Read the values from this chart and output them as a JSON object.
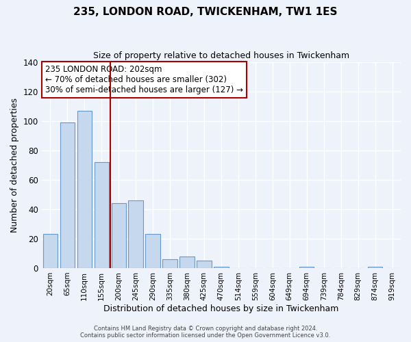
{
  "title": "235, LONDON ROAD, TWICKENHAM, TW1 1ES",
  "subtitle": "Size of property relative to detached houses in Twickenham",
  "xlabel": "Distribution of detached houses by size in Twickenham",
  "ylabel": "Number of detached properties",
  "bar_labels": [
    "20sqm",
    "65sqm",
    "110sqm",
    "155sqm",
    "200sqm",
    "245sqm",
    "290sqm",
    "335sqm",
    "380sqm",
    "425sqm",
    "470sqm",
    "514sqm",
    "559sqm",
    "604sqm",
    "649sqm",
    "694sqm",
    "739sqm",
    "784sqm",
    "829sqm",
    "874sqm",
    "919sqm"
  ],
  "bar_values": [
    23,
    99,
    107,
    72,
    44,
    46,
    23,
    6,
    8,
    5,
    1,
    0,
    0,
    0,
    0,
    1,
    0,
    0,
    0,
    1,
    0
  ],
  "bar_color": "#c5d8ee",
  "bar_edgecolor": "#6699cc",
  "ylim": [
    0,
    140
  ],
  "yticks": [
    0,
    20,
    40,
    60,
    80,
    100,
    120,
    140
  ],
  "property_line_x": 3.5,
  "property_line_color": "#aa0000",
  "annotation_title": "235 LONDON ROAD: 202sqm",
  "annotation_line1": "← 70% of detached houses are smaller (302)",
  "annotation_line2": "30% of semi-detached houses are larger (127) →",
  "annotation_box_edgecolor": "#aa0000",
  "footer_line1": "Contains HM Land Registry data © Crown copyright and database right 2024.",
  "footer_line2": "Contains public sector information licensed under the Open Government Licence v3.0.",
  "background_color": "#eef2fb",
  "grid_color": "#ffffff"
}
